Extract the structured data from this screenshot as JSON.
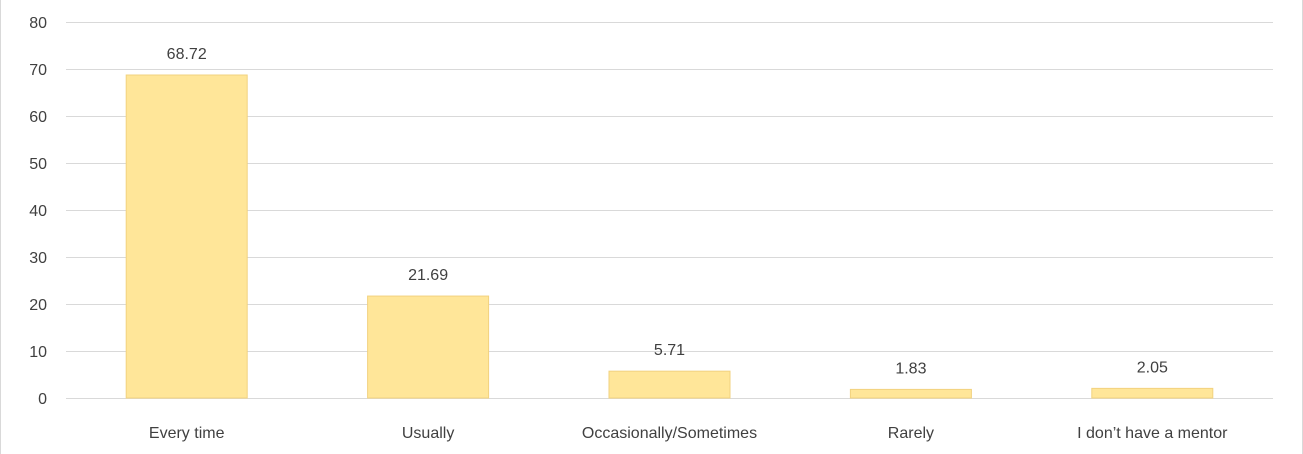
{
  "chart_data": {
    "type": "bar",
    "categories": [
      "Every time",
      "Usually",
      "Occasionally/Sometimes",
      "Rarely",
      "I don’t have a mentor"
    ],
    "values": [
      68.72,
      21.69,
      5.71,
      1.83,
      2.05
    ],
    "data_labels": [
      "68.72",
      "21.69",
      "5.71",
      "1.83",
      "2.05"
    ],
    "yticks": [
      "0",
      "10",
      "20",
      "30",
      "40",
      "50",
      "60",
      "70",
      "80"
    ],
    "ylim": [
      0,
      80
    ],
    "grid": true,
    "legend": "none",
    "bar_color": "#FFE699",
    "bar_edge_color": "#F2D27F",
    "grid_color": "#D9D9D9",
    "text_color": "#404040"
  }
}
